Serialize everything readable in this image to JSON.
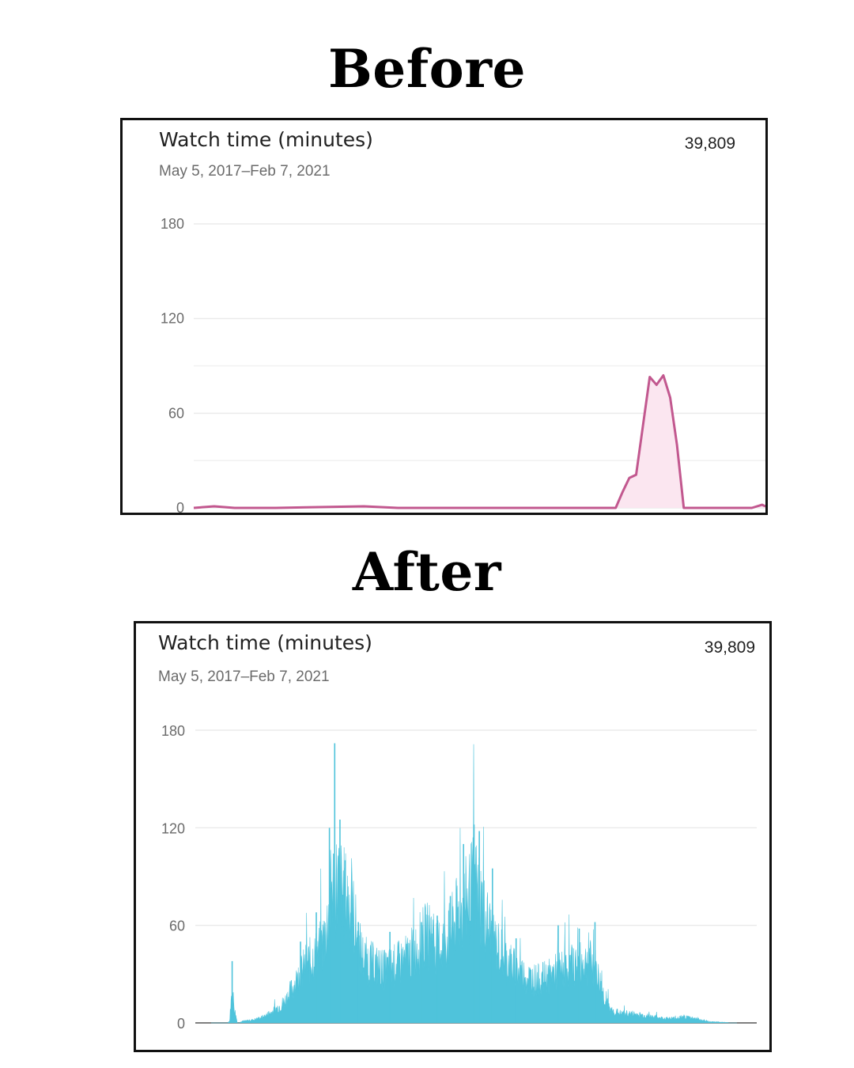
{
  "headings": {
    "before": "Before",
    "after": "After"
  },
  "chart_data": [
    {
      "type": "area",
      "panel": "before",
      "title": "Watch time (minutes)",
      "subtitle": "May 5, 2017–Feb 7, 2021",
      "total": "39,809",
      "ylim": [
        0,
        180
      ],
      "yticks": [
        0,
        60,
        120,
        180
      ],
      "xlabel": "",
      "ylabel": "",
      "grid": true,
      "color": "#c2588f",
      "fill": "#fbe6f0",
      "points": [
        [
          0,
          0
        ],
        [
          3,
          1
        ],
        [
          6,
          0
        ],
        [
          12,
          0
        ],
        [
          25,
          1
        ],
        [
          30,
          0
        ],
        [
          50,
          0
        ],
        [
          58,
          0
        ],
        [
          62,
          0
        ],
        [
          63,
          10
        ],
        [
          64,
          19
        ],
        [
          65,
          21
        ],
        [
          66,
          52
        ],
        [
          67,
          83
        ],
        [
          68,
          78
        ],
        [
          69,
          84
        ],
        [
          70,
          70
        ],
        [
          71,
          40
        ],
        [
          72,
          0
        ],
        [
          75,
          0
        ],
        [
          82,
          0
        ],
        [
          83.5,
          2
        ],
        [
          84,
          1
        ]
      ],
      "x_range": [
        0,
        84
      ]
    },
    {
      "type": "area",
      "panel": "after",
      "title": "Watch time (minutes)",
      "subtitle": "May 5, 2017–Feb 7, 2021",
      "total": "39,809",
      "ylim": [
        0,
        180
      ],
      "yticks": [
        0,
        60,
        120,
        180
      ],
      "xlabel": "",
      "ylabel": "",
      "grid": true,
      "color": "#4fc3db",
      "envelope": [
        [
          0.0,
          0
        ],
        [
          0.03,
          0
        ],
        [
          0.035,
          1
        ],
        [
          0.04,
          22
        ],
        [
          0.045,
          8
        ],
        [
          0.05,
          0
        ],
        [
          0.06,
          1
        ],
        [
          0.08,
          2
        ],
        [
          0.1,
          4
        ],
        [
          0.12,
          8
        ],
        [
          0.14,
          14
        ],
        [
          0.16,
          26
        ],
        [
          0.18,
          38
        ],
        [
          0.2,
          45
        ],
        [
          0.21,
          50
        ],
        [
          0.22,
          62
        ],
        [
          0.225,
          78
        ],
        [
          0.23,
          90
        ],
        [
          0.24,
          92
        ],
        [
          0.25,
          86
        ],
        [
          0.26,
          80
        ],
        [
          0.27,
          72
        ],
        [
          0.28,
          52
        ],
        [
          0.29,
          42
        ],
        [
          0.31,
          38
        ],
        [
          0.33,
          35
        ],
        [
          0.35,
          38
        ],
        [
          0.37,
          42
        ],
        [
          0.39,
          48
        ],
        [
          0.4,
          55
        ],
        [
          0.42,
          60
        ],
        [
          0.43,
          50
        ],
        [
          0.45,
          55
        ],
        [
          0.47,
          72
        ],
        [
          0.49,
          82
        ],
        [
          0.5,
          92
        ],
        [
          0.51,
          84
        ],
        [
          0.52,
          70
        ],
        [
          0.54,
          52
        ],
        [
          0.56,
          42
        ],
        [
          0.58,
          35
        ],
        [
          0.6,
          30
        ],
        [
          0.62,
          28
        ],
        [
          0.64,
          30
        ],
        [
          0.66,
          34
        ],
        [
          0.68,
          36
        ],
        [
          0.7,
          38
        ],
        [
          0.72,
          40
        ],
        [
          0.73,
          36
        ],
        [
          0.74,
          26
        ],
        [
          0.75,
          14
        ],
        [
          0.76,
          8
        ],
        [
          0.78,
          6
        ],
        [
          0.8,
          6
        ],
        [
          0.82,
          5
        ],
        [
          0.84,
          4
        ],
        [
          0.86,
          3
        ],
        [
          0.88,
          3
        ],
        [
          0.9,
          4
        ],
        [
          0.92,
          3
        ],
        [
          0.94,
          1
        ],
        [
          1.0,
          0
        ]
      ],
      "spikes": [
        [
          0.04,
          38
        ],
        [
          0.17,
          50
        ],
        [
          0.2,
          68
        ],
        [
          0.225,
          120
        ],
        [
          0.235,
          172
        ],
        [
          0.245,
          125
        ],
        [
          0.255,
          100
        ],
        [
          0.28,
          62
        ],
        [
          0.34,
          56
        ],
        [
          0.4,
          62
        ],
        [
          0.43,
          66
        ],
        [
          0.455,
          78
        ],
        [
          0.48,
          110
        ],
        [
          0.5,
          122
        ],
        [
          0.51,
          118
        ],
        [
          0.535,
          95
        ],
        [
          0.58,
          52
        ],
        [
          0.66,
          60
        ],
        [
          0.7,
          58
        ],
        [
          0.73,
          62
        ]
      ]
    }
  ]
}
